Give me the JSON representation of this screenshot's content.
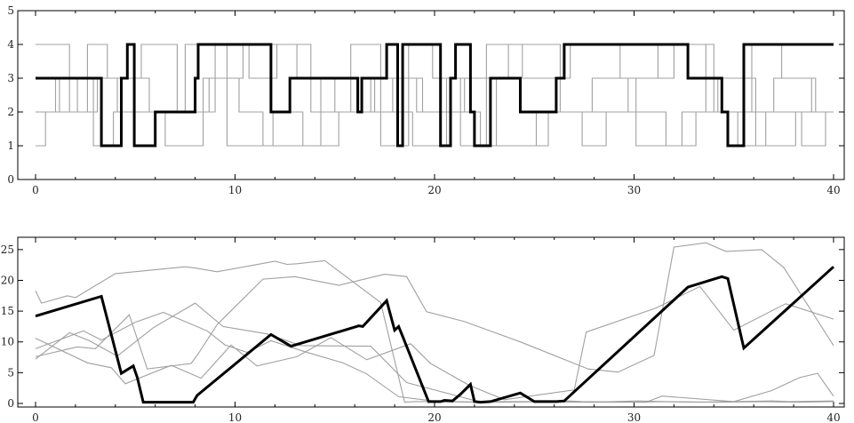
{
  "chart_data": [
    {
      "type": "line",
      "title": "",
      "xlabel": "",
      "ylabel": "",
      "xlim": [
        0,
        40
      ],
      "ylim": [
        0,
        5
      ],
      "xticks": [
        0,
        10,
        20,
        30,
        40
      ],
      "yticks": [
        0,
        1,
        2,
        3,
        4,
        5
      ],
      "grid": false,
      "legend": "none",
      "step": true,
      "colors": {
        "highlight": "#000000",
        "background": "#a0a0a0"
      },
      "series": [
        {
          "role": "highlight",
          "x": [
            0,
            3.3,
            3.3,
            4.3,
            4.3,
            4.6,
            4.6,
            4.95,
            4.95,
            6.0,
            6.0,
            8.0,
            8.0,
            8.15,
            8.15,
            11.8,
            11.8,
            12.75,
            12.75,
            16.15,
            16.15,
            16.35,
            16.35,
            17.6,
            17.6,
            18.15,
            18.15,
            18.4,
            18.4,
            20.3,
            20.3,
            20.8,
            20.8,
            21.05,
            21.05,
            21.8,
            21.8,
            22.0,
            22.0,
            22.8,
            22.8,
            24.3,
            24.3,
            26.1,
            26.1,
            26.5,
            26.5,
            32.7,
            32.7,
            34.4,
            34.4,
            34.7,
            34.7,
            35.5,
            35.5,
            40
          ],
          "y": [
            3,
            3,
            1,
            1,
            3,
            3,
            4,
            4,
            1,
            1,
            2,
            2,
            3,
            3,
            4,
            4,
            2,
            2,
            3,
            3,
            2,
            2,
            3,
            3,
            4,
            4,
            1,
            1,
            4,
            4,
            1,
            1,
            3,
            3,
            4,
            4,
            2,
            2,
            1,
            1,
            3,
            3,
            2,
            2,
            3,
            3,
            4,
            4,
            3,
            3,
            2,
            2,
            1,
            1,
            4,
            4
          ]
        },
        {
          "role": "background",
          "x": [
            0,
            1.7,
            1.7,
            2.6,
            2.6,
            3.6,
            3.6,
            5.3,
            5.3,
            7.1,
            7.1,
            9.0,
            9.0,
            10.7,
            10.7,
            12.1,
            12.1,
            13.8,
            13.8,
            15.8,
            15.8,
            17.3,
            17.3,
            18.7,
            18.7,
            19.9,
            19.9,
            21.3,
            21.3,
            22.6,
            22.6,
            24.4,
            24.4,
            26.8,
            26.8,
            29.3,
            29.3,
            31.2,
            31.2,
            33.6,
            33.6,
            35.9,
            35.9,
            37.4,
            37.4,
            38.9,
            38.9,
            40
          ],
          "y": [
            4,
            4,
            2,
            2,
            4,
            4,
            3,
            3,
            4,
            4,
            2,
            2,
            4,
            4,
            3,
            3,
            4,
            4,
            2,
            2,
            4,
            4,
            1,
            1,
            4,
            4,
            3,
            3,
            1,
            1,
            4,
            4,
            3,
            3,
            4,
            4,
            3,
            3,
            4,
            4,
            2,
            2,
            4,
            4,
            3,
            3,
            2,
            2
          ]
        },
        {
          "role": "background",
          "x": [
            0,
            1.2,
            1.2,
            2.9,
            2.9,
            3.9,
            3.9,
            6.5,
            6.5,
            8.4,
            8.4,
            10.2,
            10.2,
            11.4,
            11.4,
            14.3,
            14.3,
            16.8,
            16.8,
            18.9,
            18.9,
            20.6,
            20.6,
            23.1,
            23.1,
            25.7,
            25.7,
            27.9,
            27.9,
            30.1,
            30.1,
            32.4,
            32.4,
            34.2,
            34.2,
            36.1,
            36.1,
            38.1,
            38.1,
            40
          ],
          "y": [
            2,
            2,
            3,
            3,
            1,
            1,
            2,
            2,
            1,
            1,
            3,
            3,
            2,
            2,
            1,
            1,
            3,
            3,
            2,
            2,
            1,
            1,
            3,
            3,
            1,
            1,
            2,
            2,
            3,
            3,
            1,
            1,
            2,
            2,
            3,
            3,
            1,
            1,
            2,
            2
          ]
        },
        {
          "role": "background",
          "x": [
            0,
            0.5,
            0.5,
            2.1,
            2.1,
            4.1,
            4.1,
            7.5,
            7.5,
            9.6,
            9.6,
            11.9,
            11.9,
            13.4,
            13.4,
            15.2,
            15.2,
            17.9,
            17.9,
            19.4,
            19.4,
            22.3,
            22.3,
            25.1,
            25.1,
            27.4,
            27.4,
            28.6,
            28.6,
            31.6,
            31.6,
            33.1,
            33.1,
            35.2,
            35.2,
            36.6,
            36.6,
            38.4,
            38.4,
            39.6,
            39.6,
            40
          ],
          "y": [
            1,
            1,
            2,
            2,
            3,
            3,
            2,
            2,
            4,
            4,
            1,
            1,
            2,
            2,
            1,
            1,
            2,
            2,
            3,
            3,
            2,
            2,
            1,
            1,
            2,
            2,
            1,
            1,
            2,
            2,
            1,
            1,
            2,
            2,
            1,
            1,
            2,
            2,
            1,
            1,
            2,
            2
          ]
        },
        {
          "role": "background",
          "x": [
            0,
            1.0,
            1.0,
            3.1,
            3.1,
            5.7,
            5.7,
            8.7,
            8.7,
            10.4,
            10.4,
            13.1,
            13.1,
            15.0,
            15.0,
            17.0,
            17.0,
            19.1,
            19.1,
            21.5,
            21.5,
            23.7,
            23.7,
            26.3,
            26.3,
            29.7,
            29.7,
            32.0,
            32.0,
            34.0,
            34.0,
            37.0,
            37.0,
            39.1,
            39.1,
            40
          ],
          "y": [
            3,
            3,
            2,
            2,
            3,
            3,
            2,
            2,
            3,
            3,
            4,
            4,
            3,
            3,
            2,
            2,
            3,
            3,
            2,
            2,
            3,
            3,
            4,
            4,
            2,
            2,
            3,
            3,
            4,
            4,
            2,
            2,
            3,
            3,
            2,
            2
          ]
        }
      ]
    },
    {
      "type": "line",
      "title": "",
      "xlabel": "",
      "ylabel": "",
      "xlim": [
        0,
        40
      ],
      "ylim": [
        0,
        27
      ],
      "xticks": [
        0,
        10,
        20,
        30,
        40
      ],
      "yticks": [
        0,
        5,
        10,
        15,
        20,
        25
      ],
      "grid": false,
      "legend": "none",
      "step": false,
      "colors": {
        "highlight": "#000000",
        "background": "#a0a0a0"
      },
      "series": [
        {
          "role": "highlight",
          "x": [
            0,
            3.3,
            4.3,
            4.9,
            5.1,
            5.4,
            6.0,
            7.9,
            8.1,
            11.8,
            12.8,
            16.2,
            16.4,
            17.6,
            18.0,
            18.2,
            18.4,
            19.7,
            20.3,
            20.5,
            20.9,
            21.3,
            21.8,
            22.0,
            22.3,
            22.8,
            24.3,
            25.0,
            26.1,
            26.5,
            32.7,
            34.4,
            34.7,
            35.5,
            40
          ],
          "y": [
            14.2,
            17.4,
            4.9,
            6.1,
            4.2,
            0.2,
            0.2,
            0.2,
            1.3,
            11.2,
            9.3,
            12.6,
            12.5,
            16.7,
            11.9,
            12.5,
            10.9,
            0.3,
            0.3,
            0.5,
            0.4,
            1.5,
            3.1,
            0.3,
            0.2,
            0.3,
            1.7,
            0.3,
            0.3,
            0.4,
            18.9,
            20.6,
            20.3,
            9.0,
            22.2
          ]
        },
        {
          "role": "background",
          "x": [
            0,
            0.3,
            1.6,
            2.0,
            4.0,
            7.5,
            8.0,
            9.1,
            12.0,
            12.6,
            13.1,
            14.5,
            17.3,
            18.5,
            19.0,
            20.5,
            22.1,
            25.5,
            26.7,
            27.4,
            30.5,
            31.1,
            34.2,
            36.5,
            38.2,
            39.9,
            40
          ],
          "y": [
            18.3,
            16.3,
            17.5,
            17.2,
            21.1,
            22.2,
            22.0,
            21.4,
            23.1,
            22.6,
            22.7,
            23.2,
            16.4,
            0.2,
            0.3,
            0.3,
            0.2,
            0.3,
            0.4,
            0.3,
            0.2,
            0.3,
            0.2,
            0.3,
            0.2,
            0.3,
            0.3
          ]
        },
        {
          "role": "background",
          "x": [
            0,
            2.1,
            3.0,
            4.7,
            5.6,
            7.8,
            8.2,
            9.1,
            11.4,
            13.0,
            15.2,
            17.5,
            18.6,
            19.6,
            21.5,
            24.3,
            27.7,
            29.2,
            31.0,
            32.0,
            33.6,
            34.6,
            36.4,
            37.5,
            40
          ],
          "y": [
            7.6,
            9.2,
            8.9,
            14.4,
            5.6,
            6.5,
            8.3,
            12.8,
            20.2,
            20.6,
            19.2,
            21.0,
            20.6,
            14.9,
            13.3,
            10.0,
            5.6,
            5.1,
            7.8,
            25.4,
            26.1,
            24.7,
            25.0,
            22.1,
            9.4
          ]
        },
        {
          "role": "background",
          "x": [
            0,
            2.6,
            3.8,
            4.5,
            6.8,
            8.3,
            9.8,
            11.1,
            13.1,
            14.8,
            16.6,
            18.8,
            19.8,
            21.7,
            23.5,
            27.0,
            27.6,
            31.1,
            33.3,
            35.0,
            37.6,
            40
          ],
          "y": [
            10.6,
            6.6,
            5.8,
            3.2,
            6.2,
            4.1,
            9.5,
            6.1,
            7.6,
            10.7,
            7.1,
            9.7,
            6.5,
            3.0,
            0.6,
            2.2,
            11.6,
            15.5,
            19.0,
            11.9,
            16.2,
            13.7
          ]
        },
        {
          "role": "background",
          "x": [
            0,
            1.7,
            2.7,
            4.1,
            5.9,
            8.0,
            9.4,
            11.6,
            13.3,
            16.8,
            18.6,
            22.2,
            25.7,
            27.2,
            30.6,
            31.4,
            35.0,
            36.9,
            38.3,
            39.2,
            39.8,
            40
          ],
          "y": [
            7.2,
            11.5,
            10.2,
            7.7,
            12.3,
            16.3,
            12.5,
            11.3,
            9.4,
            9.3,
            3.4,
            0.3,
            0.3,
            0.2,
            0.2,
            1.2,
            0.3,
            2.1,
            4.2,
            4.9,
            2.1,
            1.2
          ]
        },
        {
          "role": "background",
          "x": [
            0,
            2.4,
            3.3,
            5.0,
            6.4,
            8.6,
            9.5,
            10.6,
            11.8,
            13.5,
            15.4,
            16.6,
            18.2,
            20.4,
            20.9,
            22.6,
            26.2,
            28.0,
            30.2,
            31.5,
            33.3,
            36.9,
            37.8,
            40
          ],
          "y": [
            8.9,
            11.8,
            10.3,
            13.2,
            14.8,
            11.8,
            9.5,
            8.3,
            10.2,
            8.4,
            6.6,
            4.8,
            1.1,
            0.2,
            0.3,
            0.2,
            0.3,
            0.2,
            0.4,
            0.3,
            0.2,
            0.4,
            0.3,
            0.4
          ]
        }
      ]
    }
  ]
}
